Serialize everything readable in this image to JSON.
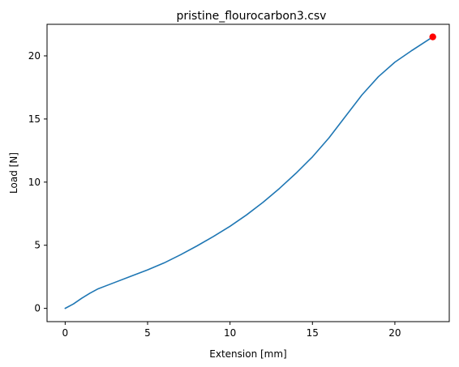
{
  "chart_data": {
    "type": "line",
    "title": "pristine_flourocarbon3.csv",
    "xlabel": "Extension [mm]",
    "ylabel": "Load [N]",
    "xlim": [
      -1.1,
      23.3
    ],
    "ylim": [
      -1.05,
      22.5
    ],
    "xticks": [
      0,
      5,
      10,
      15,
      20
    ],
    "yticks": [
      0,
      5,
      10,
      15,
      20
    ],
    "grid": false,
    "series": [
      {
        "name": "load-extension",
        "color": "#1f77b4",
        "x": [
          0,
          0.5,
          1,
          1.5,
          2,
          3,
          4,
          5,
          6,
          7,
          8,
          9,
          10,
          11,
          12,
          13,
          14,
          15,
          16,
          17,
          18,
          19,
          20,
          21,
          22.3
        ],
        "y": [
          0,
          0.35,
          0.8,
          1.2,
          1.55,
          2.05,
          2.55,
          3.05,
          3.6,
          4.25,
          4.95,
          5.7,
          6.5,
          7.4,
          8.4,
          9.5,
          10.7,
          12.0,
          13.5,
          15.2,
          16.9,
          18.35,
          19.5,
          20.4,
          21.5
        ]
      }
    ],
    "markers": [
      {
        "name": "max-load-point",
        "x": 22.3,
        "y": 21.5,
        "color": "#ff0000"
      }
    ]
  }
}
